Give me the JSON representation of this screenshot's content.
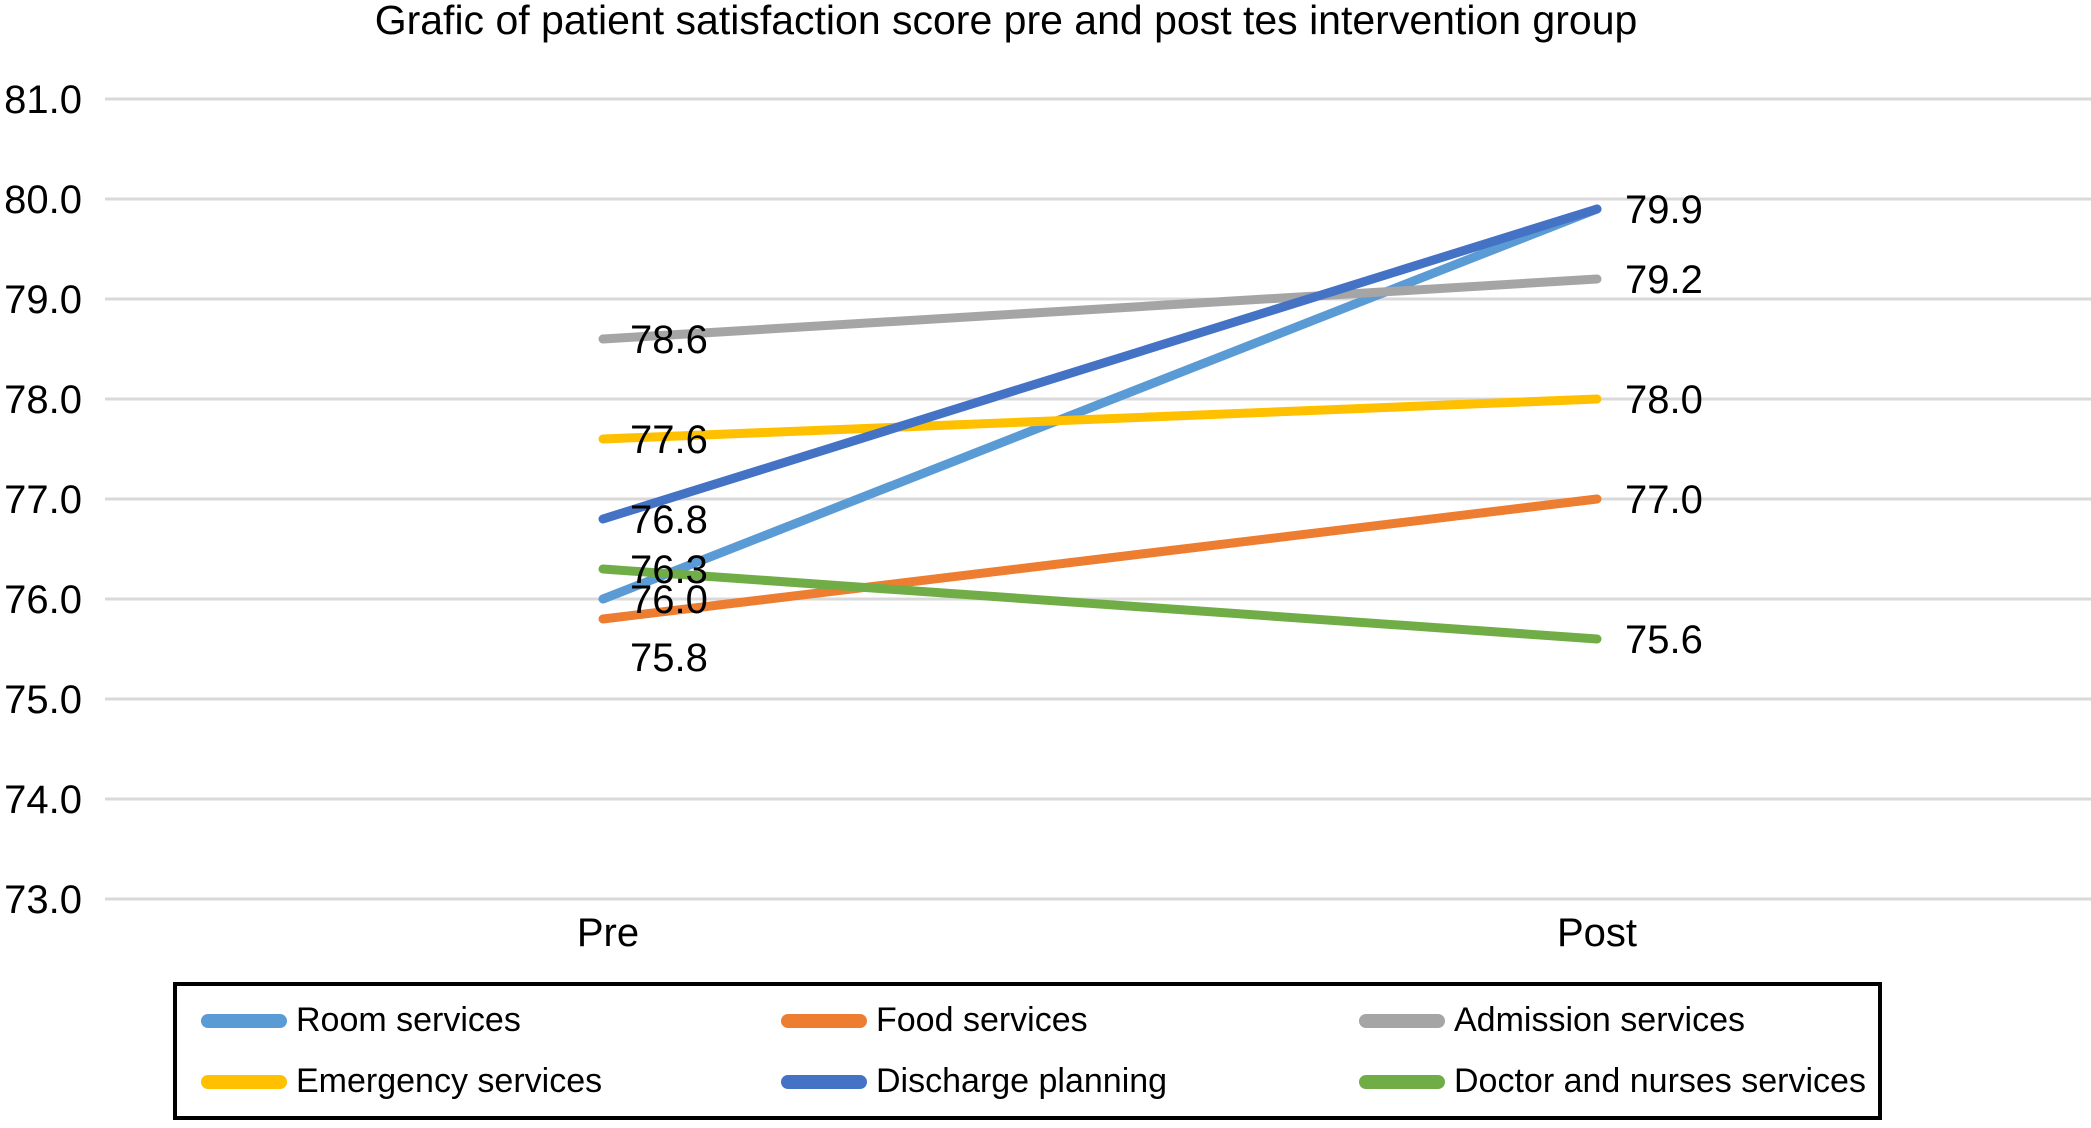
{
  "chart_data": {
    "type": "line",
    "title": "Grafic of patient satisfaction score pre and post tes intervention group",
    "categories": [
      "Pre",
      "Post"
    ],
    "series": [
      {
        "name": "Room services",
        "color": "#5B9BD5",
        "values": [
          76.0,
          79.9
        ],
        "show_post_label": false
      },
      {
        "name": "Food services",
        "color": "#ED7D31",
        "values": [
          75.8,
          77.0
        ],
        "pre_label_dy": 38
      },
      {
        "name": "Admission services",
        "color": "#A5A5A5",
        "values": [
          78.6,
          79.2
        ]
      },
      {
        "name": "Emergency services",
        "color": "#FFC000",
        "values": [
          77.6,
          78.0
        ]
      },
      {
        "name": "Discharge planning",
        "color": "#4472C4",
        "values": [
          76.8,
          79.9
        ]
      },
      {
        "name": "Doctor and nurses services",
        "color": "#70AD47",
        "values": [
          76.3,
          75.6
        ]
      }
    ],
    "ylim": [
      73.0,
      81.0
    ],
    "ytick_labels": [
      "81.0",
      "80.0",
      "79.0",
      "78.0",
      "77.0",
      "76.0",
      "75.0",
      "74.0",
      "73.0"
    ],
    "grid": true,
    "grid_color": "#D9D9D9",
    "text_color": "#000000",
    "legend_position": "bottom",
    "legend_border_color": "#000000",
    "label_decimals": 1
  }
}
